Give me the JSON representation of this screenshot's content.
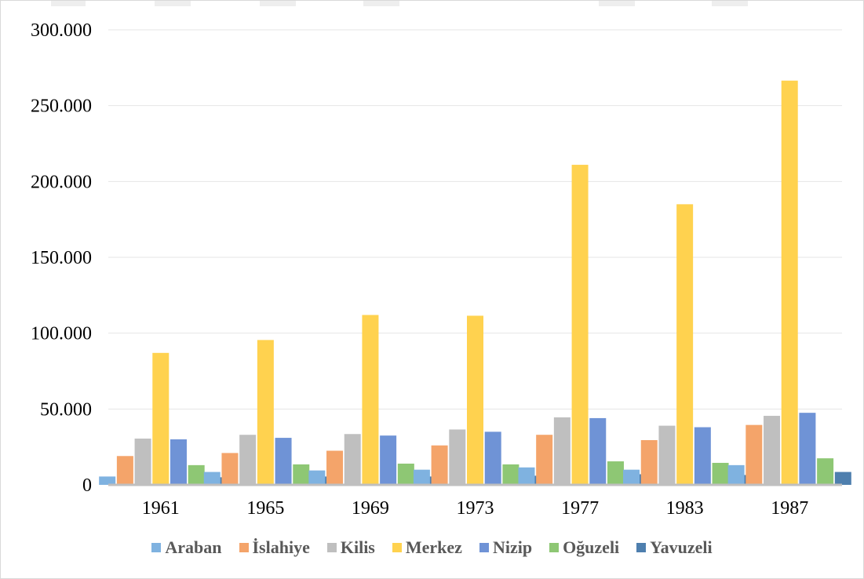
{
  "chart_data": {
    "type": "bar",
    "title": "",
    "xlabel": "",
    "ylabel": "",
    "ylim": [
      0,
      300000
    ],
    "y_ticks": [
      "0",
      "50.000",
      "100.000",
      "150.000",
      "200.000",
      "250.000",
      "300.000"
    ],
    "grid": true,
    "legend_position": "bottom",
    "categories": [
      "1961",
      "1965",
      "1969",
      "1973",
      "1977",
      "1983",
      "1987"
    ],
    "series": [
      {
        "name": "Araban",
        "color": "#7fb2e0",
        "values": [
          5500,
          8500,
          9500,
          10000,
          11500,
          10000,
          13000
        ]
      },
      {
        "name": "İslahiye",
        "color": "#f4a46a",
        "values": [
          19000,
          21000,
          22500,
          26000,
          33000,
          29500,
          39500
        ]
      },
      {
        "name": "Kilis",
        "color": "#bfbfbf",
        "values": [
          30500,
          33000,
          33500,
          36500,
          44500,
          39000,
          45500
        ]
      },
      {
        "name": "Merkez",
        "color": "#ffd24f",
        "values": [
          87000,
          95500,
          112000,
          111500,
          211000,
          185000,
          266500
        ]
      },
      {
        "name": "Nizip",
        "color": "#6f93d6",
        "values": [
          30000,
          31000,
          32500,
          35000,
          44000,
          38000,
          47500
        ]
      },
      {
        "name": "Oğuzeli",
        "color": "#8ec774",
        "values": [
          13000,
          13500,
          14000,
          13500,
          15500,
          14500,
          17500
        ]
      },
      {
        "name": "Yavuzeli",
        "color": "#4e7fae",
        "values": [
          5000,
          5500,
          5500,
          6000,
          7000,
          6500,
          8500
        ]
      }
    ]
  }
}
